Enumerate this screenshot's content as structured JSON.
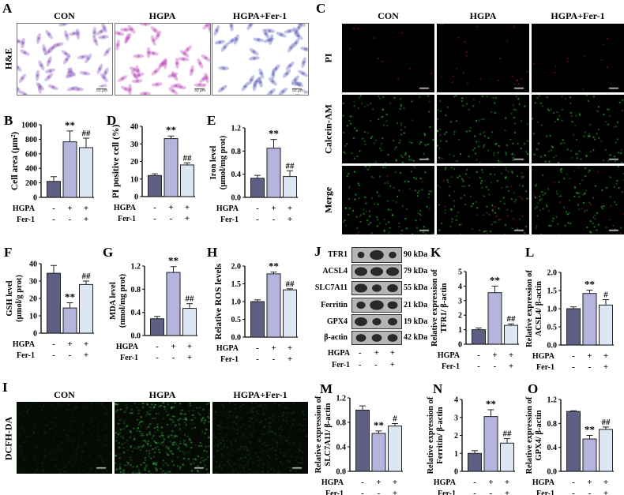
{
  "groups": [
    "CON",
    "HGPA",
    "HGPA+Fer-1"
  ],
  "colors": {
    "con": "#5f5f86",
    "hgpa": "#b4b4df",
    "fer": "#dde7f4"
  },
  "treatments": [
    {
      "label": "HGPA",
      "signs": [
        "-",
        "+",
        "+"
      ]
    },
    {
      "label": "Fer-1",
      "signs": [
        "-",
        "-",
        "+"
      ]
    }
  ],
  "panel_A": {
    "letter": "A",
    "row_label": "H&E",
    "scale_text": "50 μm"
  },
  "panel_C": {
    "letter": "C",
    "rows": [
      "PI",
      "Calcein-AM",
      "Merge"
    ]
  },
  "panel_I": {
    "letter": "I",
    "row_label": "DCFH-DA"
  },
  "panel_J": {
    "letter": "J",
    "proteins": [
      {
        "name": "TFR1",
        "kda": "90 kDa"
      },
      {
        "name": "ACSL4",
        "kda": "79 kDa"
      },
      {
        "name": "SLC7A11",
        "kda": "55 kDa"
      },
      {
        "name": "Ferritin",
        "kda": "21 kDa"
      },
      {
        "name": "GPX4",
        "kda": "19 kDa"
      },
      {
        "name": "β-actin",
        "kda": "42 kDa"
      }
    ]
  },
  "chart_data": [
    {
      "id": "B",
      "type": "bar",
      "letter": "B",
      "categories": [
        "CON",
        "HGPA",
        "HGPA+Fer-1"
      ],
      "values": [
        220,
        765,
        685
      ],
      "errors": [
        65,
        150,
        130
      ],
      "significance": [
        "",
        "**",
        "##"
      ],
      "ylabel": [
        "Cell area (μm²)"
      ],
      "ylim": [
        0,
        1000
      ],
      "yticks": [
        "0",
        "200",
        "400",
        "600",
        "800",
        "1000"
      ]
    },
    {
      "id": "D",
      "type": "bar",
      "letter": "D",
      "categories": [
        "CON",
        "HGPA",
        "HGPA+Fer-1"
      ],
      "values": [
        12,
        33,
        18
      ],
      "errors": [
        1,
        1.5,
        1.2
      ],
      "significance": [
        "",
        "**",
        "##"
      ],
      "ylabel": [
        "PI positive cell (%)"
      ],
      "ylim": [
        0,
        40
      ],
      "yticks": [
        "0",
        "10",
        "20",
        "30",
        "40"
      ]
    },
    {
      "id": "E",
      "type": "bar",
      "letter": "E",
      "categories": [
        "CON",
        "HGPA",
        "HGPA+Fer-1"
      ],
      "values": [
        0.33,
        0.85,
        0.36
      ],
      "errors": [
        0.05,
        0.15,
        0.1
      ],
      "significance": [
        "",
        "**",
        "##"
      ],
      "ylabel": [
        "Iron  level",
        "(μmol/mg prot)"
      ],
      "ylim": [
        0,
        1.2
      ],
      "yticks": [
        "0.0",
        "0.4",
        "0.8",
        "1.2"
      ]
    },
    {
      "id": "F",
      "type": "bar",
      "letter": "F",
      "categories": [
        "CON",
        "HGPA",
        "HGPA+Fer-1"
      ],
      "values": [
        34.5,
        14.5,
        28
      ],
      "errors": [
        4.5,
        3,
        2
      ],
      "significance": [
        "",
        "**",
        "##"
      ],
      "ylabel": [
        "GSH  level",
        "(μmol/g prot)"
      ],
      "ylim": [
        0,
        40
      ],
      "yticks": [
        "0",
        "10",
        "20",
        "30",
        "40"
      ]
    },
    {
      "id": "G",
      "type": "bar",
      "letter": "G",
      "categories": [
        "CON",
        "HGPA",
        "HGPA+Fer-1"
      ],
      "values": [
        0.29,
        1.09,
        0.47
      ],
      "errors": [
        0.04,
        0.1,
        0.08
      ],
      "significance": [
        "",
        "**",
        "##"
      ],
      "ylabel": [
        "MDA  level",
        "(nmol/mg prot)"
      ],
      "ylim": [
        0,
        1.2
      ],
      "yticks": [
        "0.0",
        "0.4",
        "0.8",
        "1.2"
      ]
    },
    {
      "id": "H",
      "type": "bar",
      "letter": "H",
      "categories": [
        "CON",
        "HGPA",
        "HGPA+Fer-1"
      ],
      "values": [
        1.0,
        1.78,
        1.33
      ],
      "errors": [
        0.05,
        0.05,
        0.03
      ],
      "significance": [
        "",
        "**",
        "##"
      ],
      "ylabel": [
        "Relative ROS levels"
      ],
      "ylim": [
        0,
        2
      ],
      "yticks": [
        "0.0",
        "0.5",
        "1.0",
        "1.5",
        "2.0"
      ]
    },
    {
      "id": "K",
      "type": "bar",
      "letter": "K",
      "categories": [
        "CON",
        "HGPA",
        "HGPA+Fer-1"
      ],
      "values": [
        1.0,
        3.55,
        1.3
      ],
      "errors": [
        0.12,
        0.45,
        0.1
      ],
      "significance": [
        "",
        "**",
        "##"
      ],
      "ylabel": [
        "Relative expression of",
        "TFR1/ β-actin"
      ],
      "ylim": [
        0,
        5
      ],
      "yticks": [
        "0",
        "1",
        "2",
        "3",
        "4",
        "5"
      ]
    },
    {
      "id": "L",
      "type": "bar",
      "letter": "L",
      "categories": [
        "CON",
        "HGPA",
        "HGPA+Fer-1"
      ],
      "values": [
        1.0,
        1.42,
        1.1
      ],
      "errors": [
        0.05,
        0.09,
        0.15
      ],
      "significance": [
        "",
        "**",
        "#"
      ],
      "ylabel": [
        "Relative expression of",
        "ACSL4/ β-actin"
      ],
      "ylim": [
        0,
        2
      ],
      "yticks": [
        "0.0",
        "0.5",
        "1.0",
        "1.5",
        "2.0"
      ]
    },
    {
      "id": "M",
      "type": "bar",
      "letter": "M",
      "categories": [
        "CON",
        "HGPA",
        "HGPA+Fer-1"
      ],
      "values": [
        1.0,
        0.62,
        0.74
      ],
      "errors": [
        0.07,
        0.04,
        0.04
      ],
      "significance": [
        "",
        "**",
        "#"
      ],
      "ylabel": [
        "Relative expression of",
        "SLC7A11/ β-actin"
      ],
      "ylim": [
        0,
        1.2
      ],
      "yticks": [
        "0.0",
        "0.4",
        "0.8",
        "1.2"
      ]
    },
    {
      "id": "N",
      "type": "bar",
      "letter": "N",
      "categories": [
        "CON",
        "HGPA",
        "HGPA+Fer-1"
      ],
      "values": [
        1.0,
        3.05,
        1.57
      ],
      "errors": [
        0.15,
        0.38,
        0.25
      ],
      "significance": [
        "",
        "**",
        "##"
      ],
      "ylabel": [
        "Relative expression of",
        "Ferritin/ β-actin"
      ],
      "ylim": [
        0,
        4
      ],
      "yticks": [
        "0",
        "1",
        "2",
        "3",
        "4"
      ]
    },
    {
      "id": "O",
      "type": "bar",
      "letter": "O",
      "categories": [
        "CON",
        "HGPA",
        "HGPA+Fer-1"
      ],
      "values": [
        1.0,
        0.54,
        0.7
      ],
      "errors": [
        0.01,
        0.06,
        0.04
      ],
      "significance": [
        "",
        "**",
        "##"
      ],
      "ylabel": [
        "Relative expression of",
        "GPX4/ β-actin"
      ],
      "ylim": [
        0,
        1.2
      ],
      "yticks": [
        "0.0",
        "0.4",
        "0.8",
        "1.2"
      ]
    }
  ]
}
